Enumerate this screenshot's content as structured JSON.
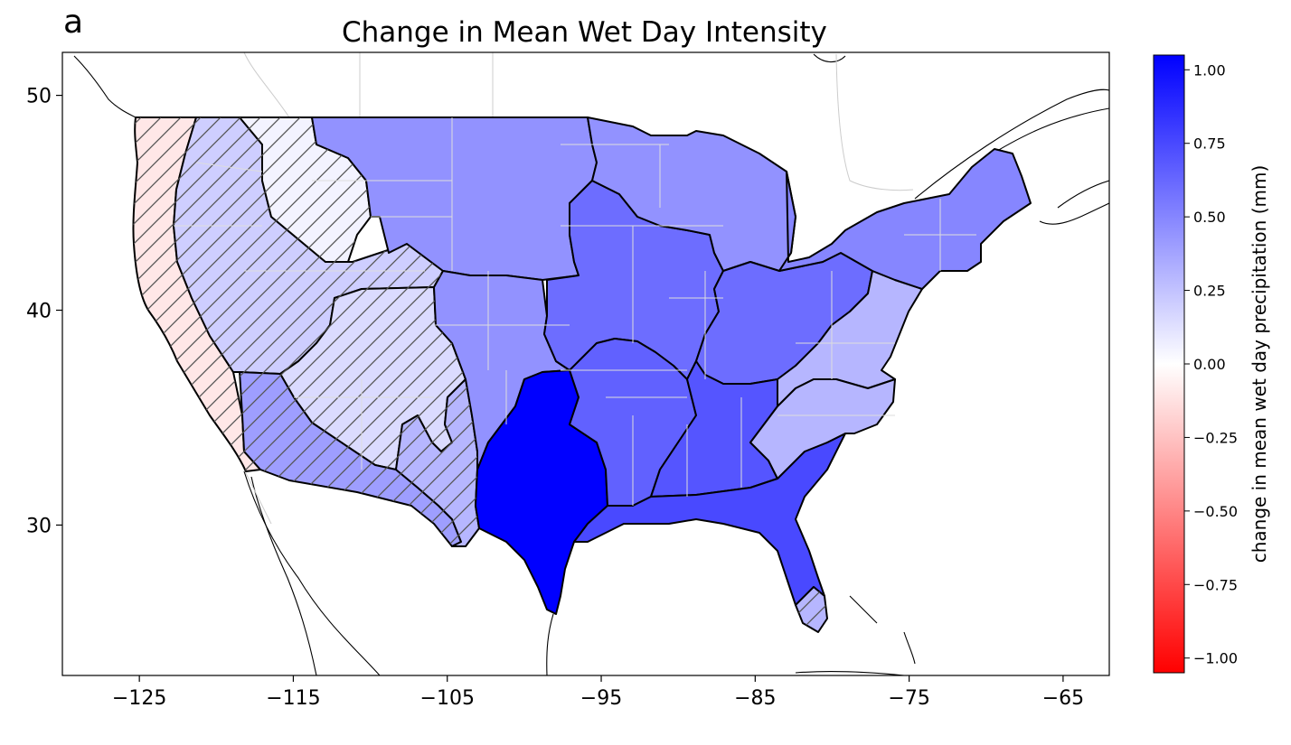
{
  "panel_label": "a",
  "chart_data": {
    "type": "heatmap",
    "title": "Change in Mean Wet Day Intensity",
    "x_ticks": [
      -125,
      -115,
      -105,
      -95,
      -85,
      -75,
      -65
    ],
    "y_ticks": [
      30,
      40,
      50
    ],
    "xlim": [
      -130,
      -62
    ],
    "ylim": [
      23,
      52
    ],
    "grid": false,
    "colorbar": {
      "label": "change in mean wet day precipitation (mm)",
      "ticks": [
        -1.0,
        -0.75,
        -0.5,
        -0.25,
        0.0,
        0.25,
        0.5,
        0.75,
        1.0
      ],
      "tick_labels": [
        "−1.00",
        "−0.75",
        "−0.50",
        "−0.25",
        "0.00",
        "0.25",
        "0.50",
        "0.75",
        "1.00"
      ],
      "range": [
        -1.05,
        1.05
      ],
      "colormap": "bwr_r",
      "colors": {
        "low": "#ff0000",
        "mid": "#ffffff",
        "high": "#0000ff"
      }
    },
    "regions": [
      {
        "id": "pacific-coast",
        "value": -0.1,
        "hatched": true
      },
      {
        "id": "northwest-interior",
        "value": 0.2,
        "hatched": true
      },
      {
        "id": "northern-rockies",
        "value": 0.05,
        "hatched": true
      },
      {
        "id": "great-basin-colorado-plateau",
        "value": 0.15,
        "hatched": true
      },
      {
        "id": "desert-southwest",
        "value": 0.4,
        "hatched": true
      },
      {
        "id": "rio-grande",
        "value": 0.3,
        "hatched": true
      },
      {
        "id": "northern-plains",
        "value": 0.45,
        "hatched": false
      },
      {
        "id": "central-plains",
        "value": 0.45,
        "hatched": false
      },
      {
        "id": "southern-plains-texas",
        "value": 1.05,
        "hatched": false
      },
      {
        "id": "upper-midwest",
        "value": 0.6,
        "hatched": false
      },
      {
        "id": "great-lakes",
        "value": 0.45,
        "hatched": false
      },
      {
        "id": "ohio-valley",
        "value": 0.6,
        "hatched": false
      },
      {
        "id": "lower-mississippi",
        "value": 0.65,
        "hatched": false
      },
      {
        "id": "southeast",
        "value": 0.7,
        "hatched": false
      },
      {
        "id": "gulf-coast-florida",
        "value": 0.75,
        "hatched": false
      },
      {
        "id": "appalachia-mid-atlantic",
        "value": 0.3,
        "hatched": false
      },
      {
        "id": "south-atlantic-piedmont",
        "value": 0.3,
        "hatched": false
      },
      {
        "id": "northeast",
        "value": 0.5,
        "hatched": false
      },
      {
        "id": "south-florida",
        "value": 0.3,
        "hatched": true
      }
    ]
  }
}
